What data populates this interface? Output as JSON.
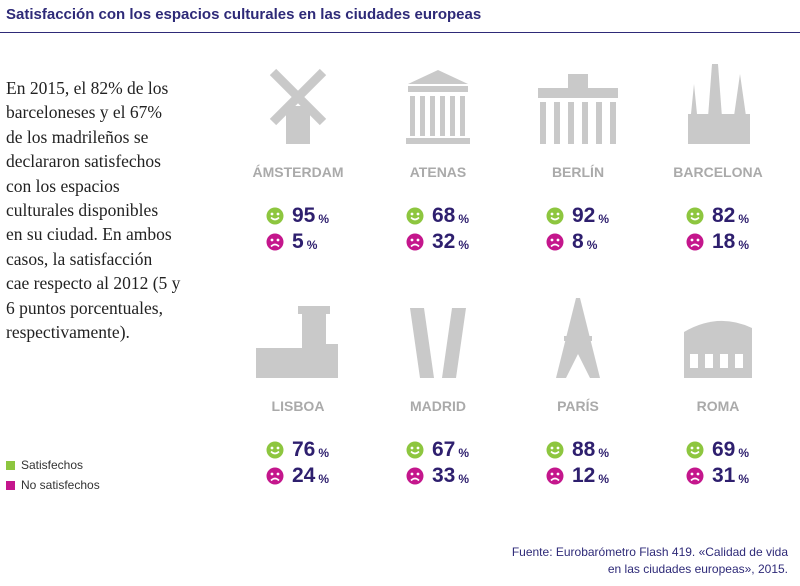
{
  "header": {
    "title": "Satisfacción con los espacios culturales en las ciudades europeas"
  },
  "intro": [
    "En 2015, el 82% de los",
    "barceloneses y el 67%",
    "de los madrileños se",
    "declararon satisfechos",
    "con los espacios",
    "culturales disponibles",
    "en su ciudad. En ambos",
    "casos, la satisfacción",
    "cae respecto al 2012 (5 y",
    "6 puntos porcentuales,",
    "respectivamente)."
  ],
  "unit": "%",
  "cities": [
    {
      "name": "ÁMSTERDAM",
      "satisfied": 95,
      "not_satisfied": 5
    },
    {
      "name": "ATENAS",
      "satisfied": 68,
      "not_satisfied": 32
    },
    {
      "name": "BERLÍN",
      "satisfied": 92,
      "not_satisfied": 8
    },
    {
      "name": "BARCELONA",
      "satisfied": 82,
      "not_satisfied": 18
    },
    {
      "name": "LISBOA",
      "satisfied": 76,
      "not_satisfied": 24
    },
    {
      "name": "MADRID",
      "satisfied": 67,
      "not_satisfied": 33
    },
    {
      "name": "PARÍS",
      "satisfied": 88,
      "not_satisfied": 12
    },
    {
      "name": "ROMA",
      "satisfied": 69,
      "not_satisfied": 31
    }
  ],
  "legend": {
    "satisfied": {
      "label": "Satisfechos",
      "color": "#8dc63f"
    },
    "not_satisfied": {
      "label": "No satisfechos",
      "color": "#c4168c"
    }
  },
  "source": [
    "Fuente: Eurobarómetro Flash 419. «Calidad de vida",
    "en las ciudades europeas», 2015."
  ]
}
